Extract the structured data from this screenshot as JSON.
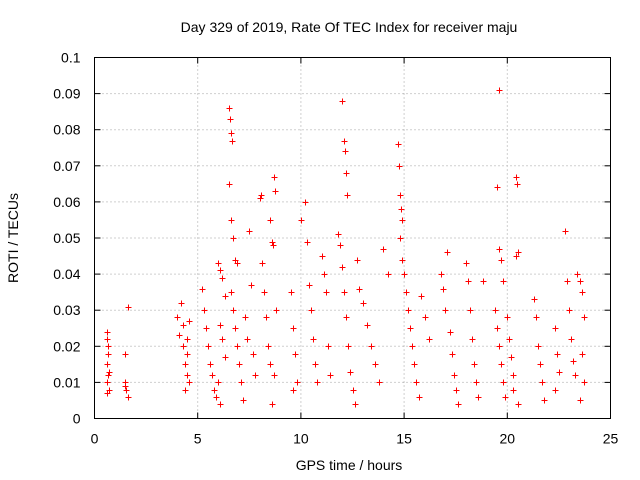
{
  "chart_data": {
    "type": "scatter",
    "title": "Day 329 of 2019, Rate Of TEC Index for receiver maju",
    "xlabel": "GPS time / hours",
    "ylabel": "ROTI / TECUs",
    "xlim": [
      0,
      25
    ],
    "ylim": [
      0,
      0.1
    ],
    "x_ticks": [
      0,
      5,
      10,
      15,
      20,
      25
    ],
    "x_tick_labels": [
      "0",
      "5",
      "10",
      "15",
      "20",
      "25"
    ],
    "y_ticks": [
      0,
      0.01,
      0.02,
      0.03,
      0.04,
      0.05,
      0.06,
      0.07,
      0.08,
      0.09,
      0.1
    ],
    "y_tick_labels": [
      "0",
      "0.01",
      "0.02",
      "0.03",
      "0.04",
      "0.05",
      "0.06",
      "0.07",
      "0.08",
      "0.09",
      "0.1"
    ],
    "grid": true,
    "marker": "+",
    "color": "#ff0000",
    "series": [
      {
        "name": "ROTI",
        "points": [
          [
            0.6,
            0.024
          ],
          [
            0.6,
            0.022
          ],
          [
            0.65,
            0.018
          ],
          [
            0.6,
            0.015
          ],
          [
            0.65,
            0.012
          ],
          [
            0.6,
            0.01
          ],
          [
            0.7,
            0.008
          ],
          [
            0.6,
            0.007
          ],
          [
            0.65,
            0.02
          ],
          [
            0.7,
            0.013
          ],
          [
            1.5,
            0.018
          ],
          [
            1.6,
            0.031
          ],
          [
            1.5,
            0.01
          ],
          [
            1.55,
            0.008
          ],
          [
            1.6,
            0.006
          ],
          [
            1.5,
            0.009
          ],
          [
            4.0,
            0.028
          ],
          [
            4.1,
            0.023
          ],
          [
            4.2,
            0.032
          ],
          [
            4.3,
            0.02
          ],
          [
            4.4,
            0.015
          ],
          [
            4.5,
            0.012
          ],
          [
            4.6,
            0.01
          ],
          [
            4.4,
            0.008
          ],
          [
            4.5,
            0.018
          ],
          [
            4.6,
            0.027
          ],
          [
            4.3,
            0.026
          ],
          [
            4.5,
            0.022
          ],
          [
            5.2,
            0.036
          ],
          [
            5.3,
            0.03
          ],
          [
            5.4,
            0.025
          ],
          [
            5.5,
            0.02
          ],
          [
            5.6,
            0.015
          ],
          [
            5.7,
            0.012
          ],
          [
            5.8,
            0.008
          ],
          [
            5.9,
            0.006
          ],
          [
            6.0,
            0.043
          ],
          [
            6.1,
            0.041
          ],
          [
            6.2,
            0.039
          ],
          [
            6.3,
            0.034
          ],
          [
            6.1,
            0.026
          ],
          [
            6.2,
            0.022
          ],
          [
            6.3,
            0.017
          ],
          [
            6.0,
            0.01
          ],
          [
            6.1,
            0.004
          ],
          [
            6.5,
            0.086
          ],
          [
            6.55,
            0.083
          ],
          [
            6.6,
            0.079
          ],
          [
            6.65,
            0.077
          ],
          [
            6.5,
            0.065
          ],
          [
            6.6,
            0.055
          ],
          [
            6.7,
            0.05
          ],
          [
            6.8,
            0.044
          ],
          [
            6.9,
            0.043
          ],
          [
            6.6,
            0.035
          ],
          [
            6.7,
            0.03
          ],
          [
            6.8,
            0.025
          ],
          [
            6.9,
            0.02
          ],
          [
            7.0,
            0.015
          ],
          [
            7.1,
            0.01
          ],
          [
            7.2,
            0.005
          ],
          [
            7.3,
            0.028
          ],
          [
            7.4,
            0.022
          ],
          [
            7.5,
            0.052
          ],
          [
            7.6,
            0.037
          ],
          [
            7.7,
            0.018
          ],
          [
            7.8,
            0.012
          ],
          [
            8.0,
            0.061
          ],
          [
            8.05,
            0.062
          ],
          [
            8.1,
            0.043
          ],
          [
            8.2,
            0.035
          ],
          [
            8.3,
            0.028
          ],
          [
            8.4,
            0.02
          ],
          [
            8.5,
            0.015
          ],
          [
            8.6,
            0.049
          ],
          [
            8.65,
            0.048
          ],
          [
            8.7,
            0.067
          ],
          [
            8.75,
            0.063
          ],
          [
            8.8,
            0.03
          ],
          [
            8.7,
            0.012
          ],
          [
            8.6,
            0.004
          ],
          [
            8.5,
            0.055
          ],
          [
            9.5,
            0.035
          ],
          [
            9.6,
            0.025
          ],
          [
            9.7,
            0.018
          ],
          [
            9.8,
            0.01
          ],
          [
            9.6,
            0.008
          ],
          [
            10.0,
            0.055
          ],
          [
            10.2,
            0.06
          ],
          [
            10.3,
            0.049
          ],
          [
            10.4,
            0.037
          ],
          [
            10.5,
            0.03
          ],
          [
            10.6,
            0.022
          ],
          [
            10.7,
            0.015
          ],
          [
            10.8,
            0.01
          ],
          [
            11.0,
            0.045
          ],
          [
            11.1,
            0.04
          ],
          [
            11.2,
            0.035
          ],
          [
            11.3,
            0.02
          ],
          [
            11.4,
            0.012
          ],
          [
            12.0,
            0.088
          ],
          [
            12.1,
            0.077
          ],
          [
            12.15,
            0.074
          ],
          [
            12.2,
            0.068
          ],
          [
            12.25,
            0.062
          ],
          [
            11.8,
            0.051
          ],
          [
            11.9,
            0.048
          ],
          [
            12.0,
            0.042
          ],
          [
            12.1,
            0.035
          ],
          [
            12.2,
            0.028
          ],
          [
            12.3,
            0.02
          ],
          [
            12.4,
            0.013
          ],
          [
            12.5,
            0.008
          ],
          [
            12.6,
            0.004
          ],
          [
            12.7,
            0.044
          ],
          [
            12.8,
            0.036
          ],
          [
            13.0,
            0.032
          ],
          [
            13.2,
            0.026
          ],
          [
            13.4,
            0.02
          ],
          [
            13.6,
            0.015
          ],
          [
            13.8,
            0.01
          ],
          [
            14.0,
            0.047
          ],
          [
            14.2,
            0.04
          ],
          [
            14.7,
            0.076
          ],
          [
            14.75,
            0.07
          ],
          [
            14.8,
            0.062
          ],
          [
            14.85,
            0.058
          ],
          [
            14.9,
            0.055
          ],
          [
            14.8,
            0.05
          ],
          [
            14.9,
            0.044
          ],
          [
            15.0,
            0.04
          ],
          [
            15.1,
            0.035
          ],
          [
            15.2,
            0.03
          ],
          [
            15.3,
            0.025
          ],
          [
            15.4,
            0.02
          ],
          [
            15.5,
            0.015
          ],
          [
            15.6,
            0.01
          ],
          [
            15.7,
            0.006
          ],
          [
            15.8,
            0.034
          ],
          [
            16.0,
            0.028
          ],
          [
            16.2,
            0.022
          ],
          [
            16.8,
            0.04
          ],
          [
            16.9,
            0.036
          ],
          [
            17.0,
            0.03
          ],
          [
            17.1,
            0.046
          ],
          [
            17.2,
            0.024
          ],
          [
            17.3,
            0.018
          ],
          [
            17.4,
            0.012
          ],
          [
            17.5,
            0.008
          ],
          [
            17.6,
            0.004
          ],
          [
            18.0,
            0.043
          ],
          [
            18.1,
            0.038
          ],
          [
            18.2,
            0.03
          ],
          [
            18.3,
            0.022
          ],
          [
            18.4,
            0.015
          ],
          [
            18.5,
            0.01
          ],
          [
            18.6,
            0.006
          ],
          [
            18.8,
            0.038
          ],
          [
            19.6,
            0.091
          ],
          [
            19.5,
            0.064
          ],
          [
            19.6,
            0.047
          ],
          [
            19.7,
            0.044
          ],
          [
            19.8,
            0.038
          ],
          [
            19.4,
            0.03
          ],
          [
            19.5,
            0.025
          ],
          [
            19.6,
            0.02
          ],
          [
            19.7,
            0.015
          ],
          [
            19.8,
            0.01
          ],
          [
            19.9,
            0.006
          ],
          [
            20.0,
            0.028
          ],
          [
            20.1,
            0.022
          ],
          [
            20.2,
            0.017
          ],
          [
            20.3,
            0.012
          ],
          [
            20.4,
            0.067
          ],
          [
            20.45,
            0.065
          ],
          [
            20.5,
            0.046
          ],
          [
            20.4,
            0.045
          ],
          [
            20.3,
            0.008
          ],
          [
            20.5,
            0.004
          ],
          [
            21.3,
            0.033
          ],
          [
            21.4,
            0.028
          ],
          [
            21.5,
            0.02
          ],
          [
            21.6,
            0.015
          ],
          [
            21.7,
            0.01
          ],
          [
            21.8,
            0.005
          ],
          [
            22.3,
            0.025
          ],
          [
            22.4,
            0.018
          ],
          [
            22.5,
            0.013
          ],
          [
            22.3,
            0.008
          ],
          [
            22.8,
            0.052
          ],
          [
            22.9,
            0.038
          ],
          [
            23.0,
            0.03
          ],
          [
            23.1,
            0.022
          ],
          [
            23.2,
            0.016
          ],
          [
            23.3,
            0.012
          ],
          [
            23.4,
            0.04
          ],
          [
            23.5,
            0.038
          ],
          [
            23.6,
            0.035
          ],
          [
            23.7,
            0.028
          ],
          [
            23.6,
            0.018
          ],
          [
            23.7,
            0.01
          ],
          [
            23.5,
            0.005
          ]
        ]
      }
    ]
  }
}
